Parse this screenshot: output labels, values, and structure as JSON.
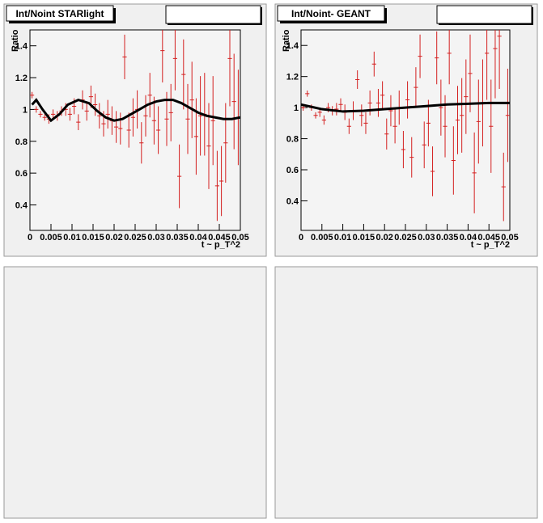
{
  "chart_data": [
    {
      "type": "scatter",
      "title": "Int/Noint STARlight",
      "y_label": "Ratio",
      "x_label": "t ~ p_T^2",
      "xlim": [
        0,
        0.05
      ],
      "ylim": [
        0.24,
        1.5
      ],
      "xticks": [
        0,
        0.005,
        0.01,
        0.015,
        0.02,
        0.025,
        0.03,
        0.035,
        0.04,
        0.045,
        0.05
      ],
      "yticks": [
        0.4,
        0.6,
        0.8,
        1,
        1.2,
        1.4
      ],
      "series": [
        {
          "type": "errorbar",
          "color": "#d42020",
          "x": [
            0.0005,
            0.0015,
            0.0025,
            0.0035,
            0.0045,
            0.0055,
            0.0065,
            0.0075,
            0.0085,
            0.0095,
            0.0105,
            0.0115,
            0.0125,
            0.0135,
            0.0145,
            0.0155,
            0.0165,
            0.0175,
            0.0185,
            0.0195,
            0.0205,
            0.0215,
            0.0225,
            0.0235,
            0.0245,
            0.0255,
            0.0265,
            0.0275,
            0.0285,
            0.0295,
            0.0305,
            0.0315,
            0.0325,
            0.0335,
            0.0345,
            0.0355,
            0.0365,
            0.0375,
            0.0385,
            0.0395,
            0.0405,
            0.0415,
            0.0425,
            0.0435,
            0.0445,
            0.0455,
            0.0465,
            0.0475,
            0.0485,
            0.0495
          ],
          "values": [
            1.09,
            1.0,
            0.97,
            0.95,
            0.94,
            0.97,
            0.96,
            0.99,
            1.0,
            0.97,
            1.02,
            0.92,
            1.06,
            0.99,
            1.08,
            1.03,
            0.96,
            0.91,
            0.97,
            0.93,
            0.89,
            0.88,
            1.33,
            0.87,
            0.95,
            1.0,
            0.79,
            0.96,
            1.09,
            0.93,
            0.87,
            1.37,
            0.94,
            0.98,
            1.32,
            0.58,
            1.22,
            0.94,
            1.06,
            0.83,
            0.96,
            0.97,
            0.77,
            0.93,
            0.52,
            0.55,
            0.79,
            1.32,
            1.05,
            0.95
          ],
          "errors": [
            0.02,
            0.02,
            0.02,
            0.02,
            0.03,
            0.03,
            0.03,
            0.03,
            0.04,
            0.04,
            0.05,
            0.05,
            0.06,
            0.06,
            0.07,
            0.07,
            0.08,
            0.08,
            0.09,
            0.09,
            0.1,
            0.1,
            0.14,
            0.11,
            0.12,
            0.12,
            0.13,
            0.13,
            0.14,
            0.15,
            0.15,
            0.2,
            0.17,
            0.18,
            0.2,
            0.2,
            0.22,
            0.22,
            0.24,
            0.24,
            0.25,
            0.26,
            0.27,
            0.28,
            0.22,
            0.22,
            0.25,
            0.3,
            0.3,
            0.3
          ]
        },
        {
          "type": "line",
          "color": "#000000",
          "x": [
            0.0005,
            0.0015,
            0.003,
            0.005,
            0.007,
            0.009,
            0.0115,
            0.014,
            0.016,
            0.018,
            0.02,
            0.022,
            0.024,
            0.026,
            0.028,
            0.03,
            0.032,
            0.034,
            0.036,
            0.038,
            0.04,
            0.042,
            0.044,
            0.046,
            0.048,
            0.05
          ],
          "values": [
            1.03,
            1.06,
            1.0,
            0.93,
            0.97,
            1.03,
            1.06,
            1.04,
            0.99,
            0.95,
            0.93,
            0.94,
            0.97,
            1.0,
            1.03,
            1.05,
            1.06,
            1.06,
            1.04,
            1.01,
            0.98,
            0.96,
            0.95,
            0.94,
            0.94,
            0.95
          ]
        }
      ]
    },
    {
      "type": "scatter",
      "title": "Int/Noint- GEANT",
      "y_label": "Ratio",
      "x_label": "t ~ p_T^2",
      "xlim": [
        0,
        0.05
      ],
      "ylim": [
        0.21,
        1.5
      ],
      "xticks": [
        0,
        0.005,
        0.01,
        0.015,
        0.02,
        0.025,
        0.03,
        0.035,
        0.04,
        0.045,
        0.05
      ],
      "yticks": [
        0.4,
        0.6,
        0.8,
        1,
        1.2,
        1.4
      ],
      "series": [
        {
          "type": "errorbar",
          "color": "#d42020",
          "x": [
            0.0005,
            0.0015,
            0.0025,
            0.0035,
            0.0045,
            0.0055,
            0.0065,
            0.0075,
            0.0085,
            0.0095,
            0.0105,
            0.0115,
            0.0125,
            0.0135,
            0.0145,
            0.0155,
            0.0165,
            0.0175,
            0.0185,
            0.0195,
            0.0205,
            0.0215,
            0.0225,
            0.0235,
            0.0245,
            0.0255,
            0.0265,
            0.0275,
            0.0285,
            0.0295,
            0.0305,
            0.0315,
            0.0325,
            0.0335,
            0.0345,
            0.0355,
            0.0365,
            0.0375,
            0.0385,
            0.0395,
            0.0405,
            0.0415,
            0.0425,
            0.0435,
            0.0445,
            0.0455,
            0.0465,
            0.0475,
            0.0485,
            0.0495
          ],
          "values": [
            1.0,
            1.09,
            1.0,
            0.95,
            0.97,
            0.92,
            1.0,
            0.98,
            0.99,
            1.02,
            0.97,
            0.88,
            0.98,
            1.18,
            0.95,
            0.9,
            1.03,
            1.28,
            1.03,
            1.08,
            0.83,
            0.98,
            0.88,
            1.0,
            0.73,
            1.05,
            0.68,
            1.13,
            1.33,
            0.76,
            0.9,
            0.59,
            1.32,
            1.0,
            0.88,
            1.35,
            0.66,
            0.92,
            0.95,
            1.07,
            1.22,
            0.58,
            0.91,
            1.03,
            1.35,
            0.88,
            1.38,
            1.46,
            0.49,
            0.95
          ],
          "errors": [
            0.02,
            0.02,
            0.02,
            0.02,
            0.03,
            0.03,
            0.03,
            0.03,
            0.04,
            0.04,
            0.05,
            0.05,
            0.06,
            0.06,
            0.07,
            0.07,
            0.08,
            0.08,
            0.09,
            0.09,
            0.1,
            0.1,
            0.11,
            0.11,
            0.12,
            0.12,
            0.13,
            0.13,
            0.14,
            0.15,
            0.15,
            0.16,
            0.17,
            0.18,
            0.2,
            0.2,
            0.22,
            0.22,
            0.24,
            0.24,
            0.25,
            0.26,
            0.27,
            0.28,
            0.3,
            0.3,
            0.32,
            0.34,
            0.22,
            0.3
          ]
        },
        {
          "type": "line",
          "color": "#000000",
          "x": [
            0,
            0.005,
            0.01,
            0.015,
            0.02,
            0.025,
            0.03,
            0.035,
            0.04,
            0.045,
            0.05
          ],
          "values": [
            1.02,
            0.99,
            0.975,
            0.98,
            0.99,
            1.0,
            1.01,
            1.02,
            1.025,
            1.03,
            1.03
          ]
        }
      ]
    }
  ]
}
